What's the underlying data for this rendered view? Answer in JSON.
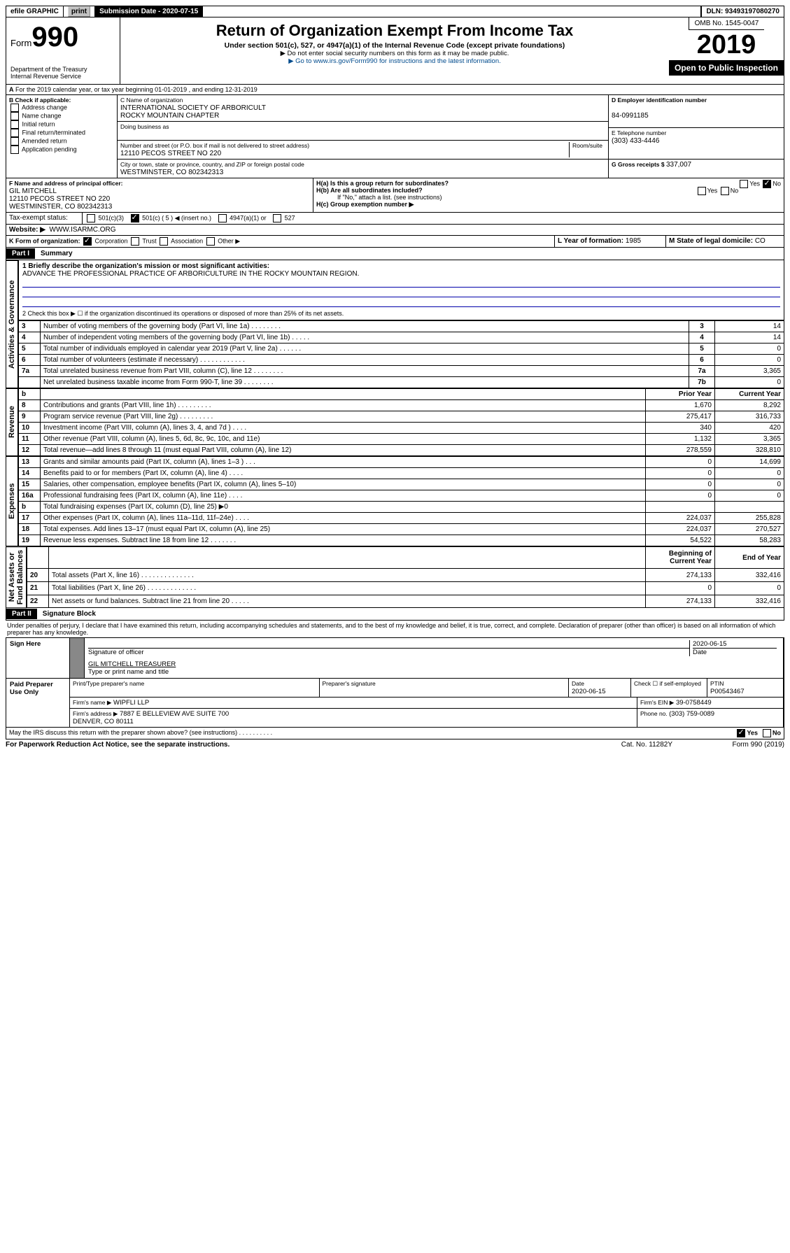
{
  "top": {
    "efile_label": "efile GRAPHIC",
    "print": "print",
    "subdate_lbl": "Submission Date - ",
    "subdate": "2020-07-15",
    "dln_lbl": "DLN: ",
    "dln": "93493197080270"
  },
  "form": {
    "prefix": "Form",
    "number": "990",
    "dept": "Department of the Treasury\nInternal Revenue Service"
  },
  "hdr": {
    "title": "Return of Organization Exempt From Income Tax",
    "sub": "Under section 501(c), 527, or 4947(a)(1) of the Internal Revenue Code (except private foundations)",
    "note1": "▶ Do not enter social security numbers on this form as it may be made public.",
    "note2": "▶ Go to www.irs.gov/Form990 for instructions and the latest information."
  },
  "omb": {
    "num": "OMB No. 1545-0047",
    "year": "2019",
    "open": "Open to Public Inspection"
  },
  "a": {
    "text": "For the 2019 calendar year, or tax year beginning 01-01-2019    , and ending 12-31-2019"
  },
  "b": {
    "title": "B Check if applicable:",
    "opts": [
      "Address change",
      "Name change",
      "Initial return",
      "Final return/terminated",
      "Amended return",
      "Application pending"
    ]
  },
  "c": {
    "lbl": "C Name of organization",
    "name": "INTERNATIONAL SOCIETY OF ARBORICULT\nROCKY MOUNTAIN CHAPTER",
    "dba_lbl": "Doing business as",
    "addr_lbl": "Number and street (or P.O. box if mail is not delivered to street address)",
    "room_lbl": "Room/suite",
    "addr": "12110 PECOS STREET NO 220",
    "city_lbl": "City or town, state or province, country, and ZIP or foreign postal code",
    "city": "WESTMINSTER, CO  802342313"
  },
  "d": {
    "lbl": "D Employer identification number",
    "val": "84-0991185"
  },
  "e": {
    "lbl": "E Telephone number",
    "val": "(303) 433-4446"
  },
  "g": {
    "lbl": "G Gross receipts $ ",
    "val": "337,007"
  },
  "f": {
    "lbl": "F  Name and address of principal officer:",
    "name": "GIL MITCHELL",
    "addr": "12110 PECOS STREET NO 220\nWESTMINSTER, CO  802342313"
  },
  "h": {
    "a": "H(a)  Is this a group return for subordinates?",
    "b": "H(b)  Are all subordinates included?",
    "note": "If \"No,\" attach a list. (see instructions)",
    "c": "H(c)  Group exemption number ▶",
    "yes": "Yes",
    "no": "No"
  },
  "i": {
    "lbl": "Tax-exempt status:",
    "opts": [
      "501(c)(3)",
      "501(c) ( 5 ) ◀ (insert no.)",
      "4947(a)(1) or",
      "527"
    ]
  },
  "j": {
    "lbl": "Website: ▶",
    "val": "WWW.ISARMC.ORG"
  },
  "k": {
    "lbl": "K Form of organization:",
    "opts": [
      "Corporation",
      "Trust",
      "Association",
      "Other ▶"
    ]
  },
  "l": {
    "lbl": "L Year of formation: ",
    "val": "1985"
  },
  "m": {
    "lbl": "M State of legal domicile: ",
    "val": "CO"
  },
  "p1": {
    "part": "Part I",
    "title": "Summary",
    "q1": "1  Briefly describe the organization's mission or most significant activities:",
    "mission": "ADVANCE THE PROFESSIONAL PRACTICE OF ARBORICULTURE IN THE ROCKY MOUNTAIN REGION.",
    "q2": "2   Check this box ▶ ☐  if the organization discontinued its operations or disposed of more than 25% of its net assets.",
    "rows": [
      {
        "n": "3",
        "t": "Number of voting members of the governing body (Part VI, line 1a)  .    .    .    .    .    .    .    .",
        "rn": "3",
        "v": "14"
      },
      {
        "n": "4",
        "t": "Number of independent voting members of the governing body (Part VI, line 1b)  .    .    .    .    .",
        "rn": "4",
        "v": "14"
      },
      {
        "n": "5",
        "t": "Total number of individuals employed in calendar year 2019 (Part V, line 2a)  .    .    .    .    .    .",
        "rn": "5",
        "v": "0"
      },
      {
        "n": "6",
        "t": "Total number of volunteers (estimate if necessary)  .    .    .    .    .    .    .    .    .    .    .    .",
        "rn": "6",
        "v": "0"
      },
      {
        "n": "7a",
        "t": "Total unrelated business revenue from Part VIII, column (C), line 12  .    .    .    .    .    .    .    .",
        "rn": "7a",
        "v": "3,365"
      },
      {
        "n": "",
        "t": "Net unrelated business taxable income from Form 990-T, line 39  .    .    .    .    .    .    .    .",
        "rn": "7b",
        "v": "0"
      }
    ],
    "colh": {
      "b": "b",
      "py": "Prior Year",
      "cy": "Current Year"
    },
    "rev": [
      {
        "n": "8",
        "t": "Contributions and grants (Part VIII, line 1h)  .    .    .    .    .    .    .    .    .",
        "p": "1,670",
        "c": "8,292"
      },
      {
        "n": "9",
        "t": "Program service revenue (Part VIII, line 2g)  .    .    .    .    .    .    .    .    .",
        "p": "275,417",
        "c": "316,733"
      },
      {
        "n": "10",
        "t": "Investment income (Part VIII, column (A), lines 3, 4, and 7d )  .    .    .    .",
        "p": "340",
        "c": "420"
      },
      {
        "n": "11",
        "t": "Other revenue (Part VIII, column (A), lines 5, 6d, 8c, 9c, 10c, and 11e)",
        "p": "1,132",
        "c": "3,365"
      },
      {
        "n": "12",
        "t": "Total revenue—add lines 8 through 11 (must equal Part VIII, column (A), line 12)",
        "p": "278,559",
        "c": "328,810"
      }
    ],
    "exp": [
      {
        "n": "13",
        "t": "Grants and similar amounts paid (Part IX, column (A), lines 1–3 )  .    .    .",
        "p": "0",
        "c": "14,699"
      },
      {
        "n": "14",
        "t": "Benefits paid to or for members (Part IX, column (A), line 4)  .    .    .    .",
        "p": "0",
        "c": "0"
      },
      {
        "n": "15",
        "t": "Salaries, other compensation, employee benefits (Part IX, column (A), lines 5–10)",
        "p": "0",
        "c": "0"
      },
      {
        "n": "16a",
        "t": "Professional fundraising fees (Part IX, column (A), line 11e)  .    .    .    .",
        "p": "0",
        "c": "0"
      },
      {
        "n": "b",
        "t": "Total fundraising expenses (Part IX, column (D), line 25) ▶0",
        "p": "",
        "c": "",
        "grey": true
      },
      {
        "n": "17",
        "t": "Other expenses (Part IX, column (A), lines 11a–11d, 11f–24e)  .    .    .    .",
        "p": "224,037",
        "c": "255,828"
      },
      {
        "n": "18",
        "t": "Total expenses. Add lines 13–17 (must equal Part IX, column (A), line 25)",
        "p": "224,037",
        "c": "270,527"
      },
      {
        "n": "19",
        "t": "Revenue less expenses. Subtract line 18 from line 12  .    .    .    .    .    .    .",
        "p": "54,522",
        "c": "58,283"
      }
    ],
    "nah": {
      "b": "Beginning of Current Year",
      "e": "End of Year"
    },
    "na": [
      {
        "n": "20",
        "t": "Total assets (Part X, line 16)  .    .    .    .    .    .    .    .    .    .    .    .    .    .",
        "p": "274,133",
        "c": "332,416"
      },
      {
        "n": "21",
        "t": "Total liabilities (Part X, line 26)  .    .    .    .    .    .    .    .    .    .    .    .    .",
        "p": "0",
        "c": "0"
      },
      {
        "n": "22",
        "t": "Net assets or fund balances. Subtract line 21 from line 20  .    .    .    .    .",
        "p": "274,133",
        "c": "332,416"
      }
    ],
    "side": {
      "ag": "Activities & Governance",
      "rev": "Revenue",
      "exp": "Expenses",
      "na": "Net Assets or\nFund Balances"
    }
  },
  "p2": {
    "part": "Part II",
    "title": "Signature Block",
    "decl": "Under penalties of perjury, I declare that I have examined this return, including accompanying schedules and statements, and to the best of my knowledge and belief, it is true, correct, and complete. Declaration of preparer (other than officer) is based on all information of which preparer has any knowledge.",
    "sign": "Sign Here",
    "sigoff": "Signature of officer",
    "date": "Date",
    "sigdate": "2020-06-15",
    "officer": "GIL MITCHELL TREASURER",
    "typeprint": "Type or print name and title",
    "paid": "Paid Preparer Use Only",
    "pp_name_lbl": "Print/Type preparer's name",
    "pp_sig_lbl": "Preparer's signature",
    "pp_date_lbl": "Date",
    "pp_date": "2020-06-15",
    "pp_chk": "Check ☐ if self-employed",
    "ptin_lbl": "PTIN",
    "ptin": "P00543467",
    "firm_lbl": "Firm's name    ▶",
    "firm": "WIPFLI LLP",
    "ein_lbl": "Firm's EIN ▶",
    "ein": "39-0758449",
    "addr_lbl": "Firm's address ▶",
    "addr": "7887 E BELLEVIEW AVE SUITE 700\nDENVER, CO  80111",
    "phone_lbl": "Phone no. ",
    "phone": "(303) 759-0089",
    "discuss": "May the IRS discuss this return with the preparer shown above? (see instructions)   .    .    .    .    .    .    .    .    .    .",
    "yes": "Yes",
    "no": "No"
  },
  "foot": {
    "pra": "For Paperwork Reduction Act Notice, see the separate instructions.",
    "cat": "Cat. No. 11282Y",
    "form": "Form 990 (2019)"
  }
}
